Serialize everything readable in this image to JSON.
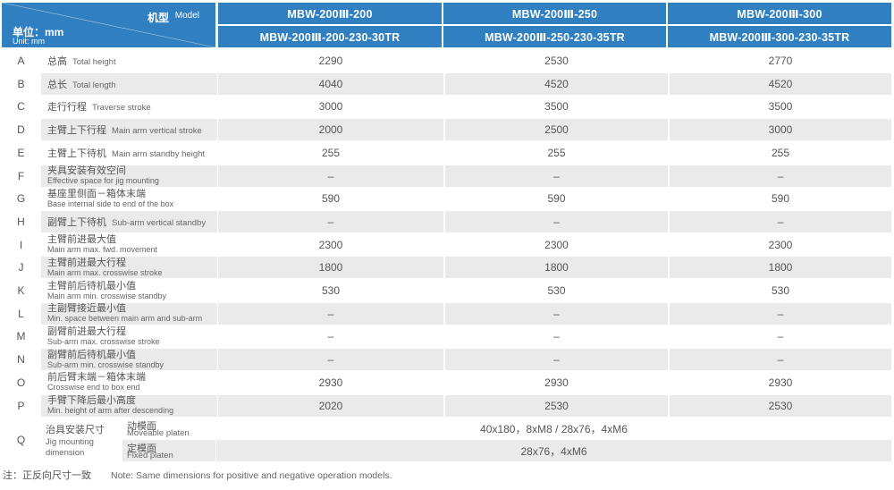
{
  "header": {
    "model_zh": "机型",
    "model_en": "Model",
    "unit_zh": "单位：mm",
    "unit_en": "Unit: mm",
    "models": [
      {
        "top": "MBW-200Ⅲ-200",
        "bottom": "MBW-200Ⅲ-200-230-30TR"
      },
      {
        "top": "MBW-200Ⅲ-250",
        "bottom": "MBW-200Ⅲ-250-230-35TR"
      },
      {
        "top": "MBW-200Ⅲ-300",
        "bottom": "MBW-200Ⅲ-300-230-35TR"
      }
    ]
  },
  "rows": [
    {
      "letter": "A",
      "zh": "总高",
      "en": "Total height",
      "values": [
        "2290",
        "2530",
        "2770"
      ]
    },
    {
      "letter": "B",
      "zh": "总长",
      "en": "Total length",
      "values": [
        "4040",
        "4520",
        "4520"
      ]
    },
    {
      "letter": "C",
      "zh": "走行行程",
      "en": "Traverse stroke",
      "values": [
        "3000",
        "3500",
        "3500"
      ]
    },
    {
      "letter": "D",
      "zh": "主臂上下行程",
      "en": "Main arm vertical stroke",
      "values": [
        "2000",
        "2500",
        "3000"
      ]
    },
    {
      "letter": "E",
      "zh": "主臂上下待机",
      "en": "Main arm standby height",
      "values": [
        "255",
        "255",
        "255"
      ]
    },
    {
      "letter": "F",
      "zh": "夹具安装有效空间",
      "en": "Effective space for jig mounting",
      "values": [
        "–",
        "–",
        "–"
      ]
    },
    {
      "letter": "G",
      "zh": "基座里侧面－箱体末端",
      "en": "Base internal side to end of the box",
      "values": [
        "590",
        "590",
        "590"
      ]
    },
    {
      "letter": "H",
      "zh": "副臂上下待机",
      "en": "Sub-arm vertical standby",
      "values": [
        "–",
        "–",
        "–"
      ]
    },
    {
      "letter": "I",
      "zh": "主臂前进最大值",
      "en": "Main arm max. fwd. movement",
      "values": [
        "2300",
        "2300",
        "2300"
      ]
    },
    {
      "letter": "J",
      "zh": "主臂前进最大行程",
      "en": "Main arm max. crosswise stroke",
      "values": [
        "1800",
        "1800",
        "1800"
      ]
    },
    {
      "letter": "K",
      "zh": "主臂前后待机最小值",
      "en": "Main arm min. crosswise standby",
      "values": [
        "530",
        "530",
        "530"
      ]
    },
    {
      "letter": "L",
      "zh": "主副臂接近最小值",
      "en": "Min. space between main arm and sub-arm",
      "values": [
        "–",
        "–",
        "–"
      ]
    },
    {
      "letter": "M",
      "zh": "副臂前进最大行程",
      "en": "Sub-arm max. crosswise stroke",
      "values": [
        "–",
        "–",
        "–"
      ]
    },
    {
      "letter": "N",
      "zh": "副臂前后待机最小值",
      "en": "Sub-arm min. crosswise standby",
      "values": [
        "–",
        "–",
        "–"
      ]
    },
    {
      "letter": "O",
      "zh": "前后臂末端－箱体末端",
      "en": "Crosswise end to box end",
      "values": [
        "2930",
        "2930",
        "2930"
      ]
    },
    {
      "letter": "P",
      "zh": "手臂下降后最小高度",
      "en": "Min. height of arm after descending",
      "values": [
        "2020",
        "2530",
        "2530"
      ]
    }
  ],
  "q_row": {
    "letter": "Q",
    "zh": "治具安装尺寸",
    "en_line1": "Jig mounting",
    "en_line2": "dimension",
    "sub": [
      {
        "zh": "动模面",
        "en": "Moveable platen",
        "value": "40x180，8xM8 / 28x76，4xM6"
      },
      {
        "zh": "定模面",
        "en": "Fixed platen",
        "value": "28x76，4xM6"
      }
    ]
  },
  "note": {
    "zh": "注：正反向尺寸一致",
    "en": "Note: Same dimensions for positive and negative operation models."
  },
  "colors": {
    "header_blue": "#2f7fc1",
    "row_gray": "#eaeaea"
  }
}
